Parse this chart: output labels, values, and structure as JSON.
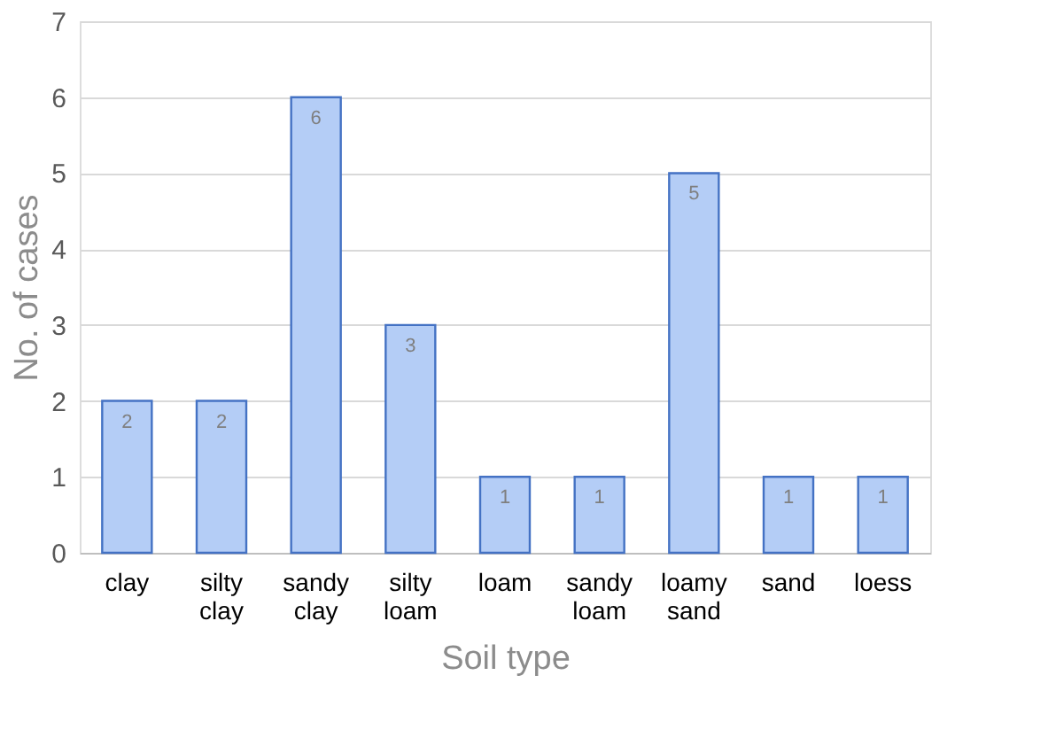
{
  "chart_data": {
    "type": "bar",
    "categories": [
      "clay",
      "silty clay",
      "sandy clay",
      "silty loam",
      "loam",
      "sandy loam",
      "loamy sand",
      "sand",
      "loess"
    ],
    "values": [
      2,
      2,
      6,
      3,
      1,
      1,
      5,
      1,
      1
    ],
    "color": "#b4cdf6",
    "xlabel": "Soil type",
    "ylabel": "No. of cases",
    "ylim": [
      0,
      7
    ],
    "yticks": [
      0,
      1,
      2,
      3,
      4,
      5,
      6,
      7
    ],
    "grid": "y",
    "data_labels": true
  }
}
